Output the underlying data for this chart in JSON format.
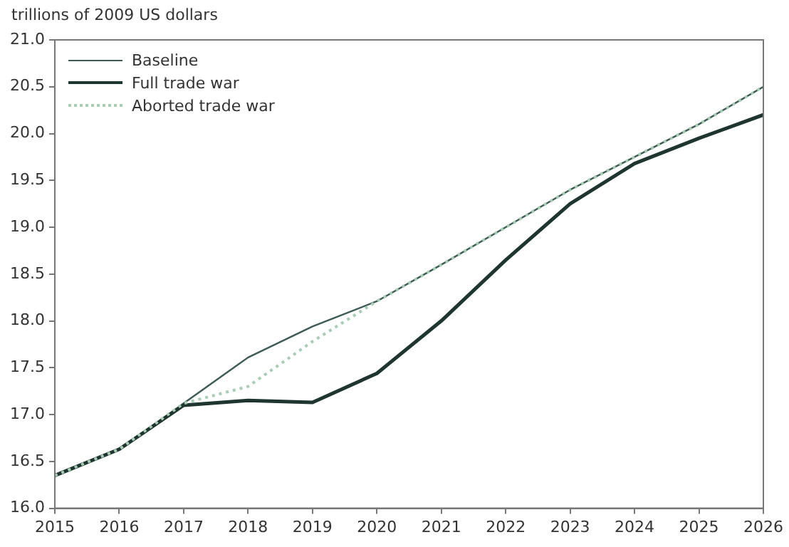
{
  "chart_data": {
    "type": "line",
    "ylabel": "trillions of 2009 US dollars",
    "x": [
      2015,
      2016,
      2017,
      2018,
      2019,
      2020,
      2021,
      2022,
      2023,
      2024,
      2025,
      2026
    ],
    "xlim": [
      2015,
      2026
    ],
    "xticks": [
      2015,
      2016,
      2017,
      2018,
      2019,
      2020,
      2021,
      2022,
      2023,
      2024,
      2025,
      2026
    ],
    "ylim": [
      16,
      21
    ],
    "yticks": [
      {
        "value": 16,
        "label": "16.0"
      },
      {
        "value": 16.5,
        "label": "16.5"
      },
      {
        "value": 17,
        "label": "17.0"
      },
      {
        "value": 17.5,
        "label": "17.5"
      },
      {
        "value": 18,
        "label": "18.0"
      },
      {
        "value": 18.5,
        "label": "18.5"
      },
      {
        "value": 19,
        "label": "19.0"
      },
      {
        "value": 19.5,
        "label": "19.5"
      },
      {
        "value": 20,
        "label": "20.0"
      },
      {
        "value": 20.5,
        "label": "20.5"
      },
      {
        "value": 21,
        "label": "21.0"
      }
    ],
    "grid": false,
    "legend": "top left",
    "marker": "none",
    "series": [
      {
        "name": "Baseline",
        "color": "#3d5a55",
        "line_style": "solid",
        "values": [
          16.35,
          16.63,
          17.12,
          17.61,
          17.94,
          18.21,
          18.6,
          19.0,
          19.4,
          19.75,
          20.1,
          20.5
        ]
      },
      {
        "name": "Full trade war",
        "color": "#1e3530",
        "line_style": "solid",
        "values": [
          16.35,
          16.63,
          17.1,
          17.15,
          17.13,
          17.44,
          18.0,
          18.65,
          19.25,
          19.68,
          19.95,
          20.2
        ]
      },
      {
        "name": "Aborted trade war",
        "color": "#a8cdb4",
        "line_style": "dotted",
        "values": [
          16.35,
          16.63,
          17.12,
          17.3,
          17.78,
          18.21,
          18.6,
          19.0,
          19.4,
          19.75,
          20.1,
          20.5
        ]
      }
    ]
  }
}
